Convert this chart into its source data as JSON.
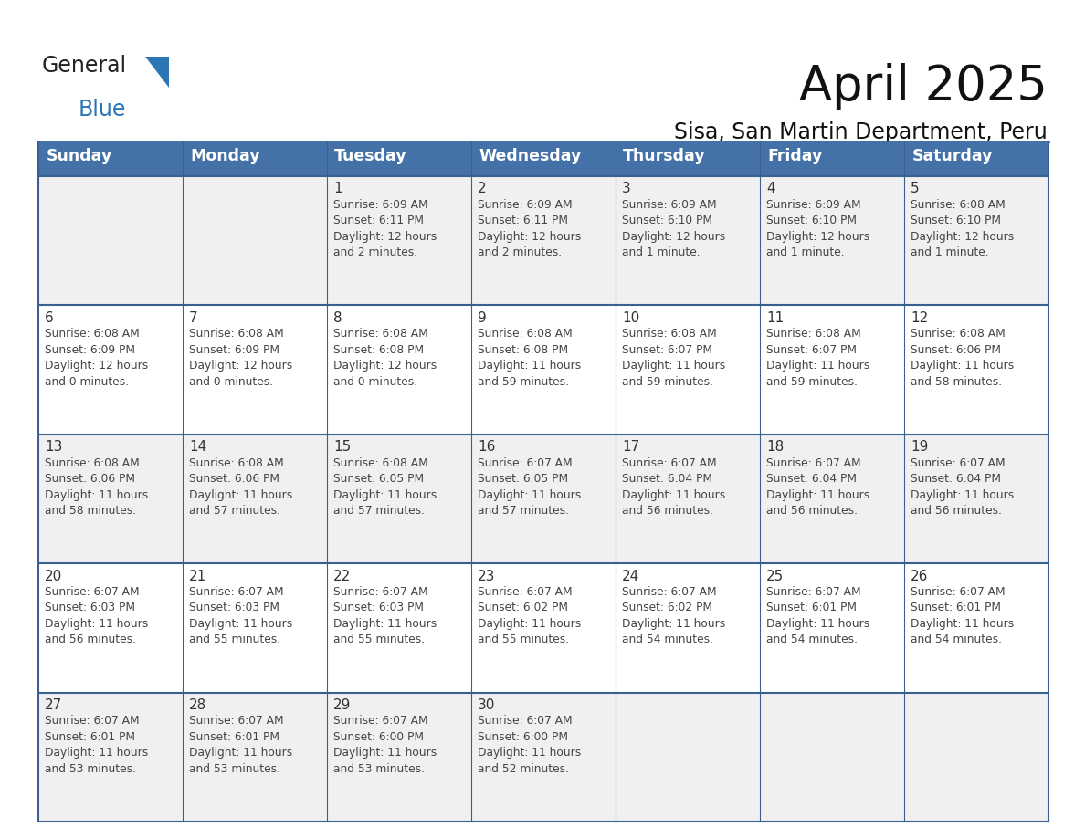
{
  "title": "April 2025",
  "subtitle": "Sisa, San Martin Department, Peru",
  "days_of_week": [
    "Sunday",
    "Monday",
    "Tuesday",
    "Wednesday",
    "Thursday",
    "Friday",
    "Saturday"
  ],
  "header_bg": "#4472A8",
  "header_text": "#FFFFFF",
  "row_bg_odd": "#F0F0F0",
  "row_bg_even": "#FFFFFF",
  "separator_color": "#3A6090",
  "day_num_color": "#333333",
  "cell_text_color": "#444444",
  "calendar_data": [
    [
      "",
      "",
      "1\nSunrise: 6:09 AM\nSunset: 6:11 PM\nDaylight: 12 hours\nand 2 minutes.",
      "2\nSunrise: 6:09 AM\nSunset: 6:11 PM\nDaylight: 12 hours\nand 2 minutes.",
      "3\nSunrise: 6:09 AM\nSunset: 6:10 PM\nDaylight: 12 hours\nand 1 minute.",
      "4\nSunrise: 6:09 AM\nSunset: 6:10 PM\nDaylight: 12 hours\nand 1 minute.",
      "5\nSunrise: 6:08 AM\nSunset: 6:10 PM\nDaylight: 12 hours\nand 1 minute."
    ],
    [
      "6\nSunrise: 6:08 AM\nSunset: 6:09 PM\nDaylight: 12 hours\nand 0 minutes.",
      "7\nSunrise: 6:08 AM\nSunset: 6:09 PM\nDaylight: 12 hours\nand 0 minutes.",
      "8\nSunrise: 6:08 AM\nSunset: 6:08 PM\nDaylight: 12 hours\nand 0 minutes.",
      "9\nSunrise: 6:08 AM\nSunset: 6:08 PM\nDaylight: 11 hours\nand 59 minutes.",
      "10\nSunrise: 6:08 AM\nSunset: 6:07 PM\nDaylight: 11 hours\nand 59 minutes.",
      "11\nSunrise: 6:08 AM\nSunset: 6:07 PM\nDaylight: 11 hours\nand 59 minutes.",
      "12\nSunrise: 6:08 AM\nSunset: 6:06 PM\nDaylight: 11 hours\nand 58 minutes."
    ],
    [
      "13\nSunrise: 6:08 AM\nSunset: 6:06 PM\nDaylight: 11 hours\nand 58 minutes.",
      "14\nSunrise: 6:08 AM\nSunset: 6:06 PM\nDaylight: 11 hours\nand 57 minutes.",
      "15\nSunrise: 6:08 AM\nSunset: 6:05 PM\nDaylight: 11 hours\nand 57 minutes.",
      "16\nSunrise: 6:07 AM\nSunset: 6:05 PM\nDaylight: 11 hours\nand 57 minutes.",
      "17\nSunrise: 6:07 AM\nSunset: 6:04 PM\nDaylight: 11 hours\nand 56 minutes.",
      "18\nSunrise: 6:07 AM\nSunset: 6:04 PM\nDaylight: 11 hours\nand 56 minutes.",
      "19\nSunrise: 6:07 AM\nSunset: 6:04 PM\nDaylight: 11 hours\nand 56 minutes."
    ],
    [
      "20\nSunrise: 6:07 AM\nSunset: 6:03 PM\nDaylight: 11 hours\nand 56 minutes.",
      "21\nSunrise: 6:07 AM\nSunset: 6:03 PM\nDaylight: 11 hours\nand 55 minutes.",
      "22\nSunrise: 6:07 AM\nSunset: 6:03 PM\nDaylight: 11 hours\nand 55 minutes.",
      "23\nSunrise: 6:07 AM\nSunset: 6:02 PM\nDaylight: 11 hours\nand 55 minutes.",
      "24\nSunrise: 6:07 AM\nSunset: 6:02 PM\nDaylight: 11 hours\nand 54 minutes.",
      "25\nSunrise: 6:07 AM\nSunset: 6:01 PM\nDaylight: 11 hours\nand 54 minutes.",
      "26\nSunrise: 6:07 AM\nSunset: 6:01 PM\nDaylight: 11 hours\nand 54 minutes."
    ],
    [
      "27\nSunrise: 6:07 AM\nSunset: 6:01 PM\nDaylight: 11 hours\nand 53 minutes.",
      "28\nSunrise: 6:07 AM\nSunset: 6:01 PM\nDaylight: 11 hours\nand 53 minutes.",
      "29\nSunrise: 6:07 AM\nSunset: 6:00 PM\nDaylight: 11 hours\nand 53 minutes.",
      "30\nSunrise: 6:07 AM\nSunset: 6:00 PM\nDaylight: 11 hours\nand 52 minutes.",
      "",
      "",
      ""
    ]
  ],
  "logo_general_color": "#222222",
  "logo_blue_color": "#2E75B6",
  "logo_triangle_color": "#2E75B6",
  "title_fontsize": 38,
  "subtitle_fontsize": 17,
  "header_fontsize": 12.5,
  "cell_day_fontsize": 11,
  "cell_text_fontsize": 8.8
}
